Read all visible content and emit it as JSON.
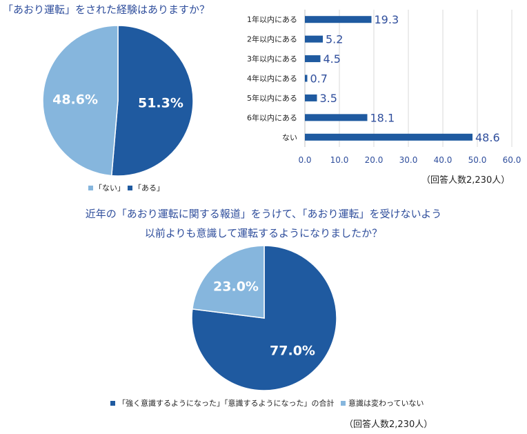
{
  "colors": {
    "dark": "#1f5aa0",
    "light": "#86b6dd",
    "axis": "#2f4e9c",
    "grid": "#d9d9d9"
  },
  "chart_data": [
    {
      "type": "pie",
      "title": "「あおり運転」をされた経験はありますか？",
      "slices": [
        {
          "label": "「ある」",
          "value": 51.3,
          "display": "51.3%"
        },
        {
          "label": "「ない」",
          "value": 48.6,
          "display": "48.6%"
        }
      ],
      "legend": [
        "「ない」",
        "「ある」"
      ]
    },
    {
      "type": "bar",
      "orientation": "horizontal",
      "categories": [
        "1年以内にある",
        "2年以内にある",
        "3年以内にある",
        "4年以内にある",
        "5年以内にある",
        "6年以内にある",
        "ない"
      ],
      "values": [
        19.3,
        5.2,
        4.5,
        0.7,
        3.5,
        18.1,
        48.6
      ],
      "value_labels": [
        "19.3",
        "5.2",
        "4.5",
        "0.7",
        "3.5",
        "18.1",
        "48.6"
      ],
      "xlim": [
        0,
        60
      ],
      "xticks": [
        "0.0",
        "10.0",
        "20.0",
        "30.0",
        "40.0",
        "50.0",
        "60.0"
      ],
      "note": "（回答人数2,230人）"
    },
    {
      "type": "pie",
      "title_lines": [
        "近年の「あおり運転に関する報道」をうけて、「あおり運転」を受けないよう",
        "以前よりも意識して運転するようになりましたか？"
      ],
      "slices": [
        {
          "label": "「強く意識するようになった」「意識するようになった」の合計",
          "value": 77.0,
          "display": "77.0%"
        },
        {
          "label": "意識は変わっていない",
          "value": 23.0,
          "display": "23.0%"
        }
      ],
      "note": "（回答人数2,230人）"
    }
  ]
}
